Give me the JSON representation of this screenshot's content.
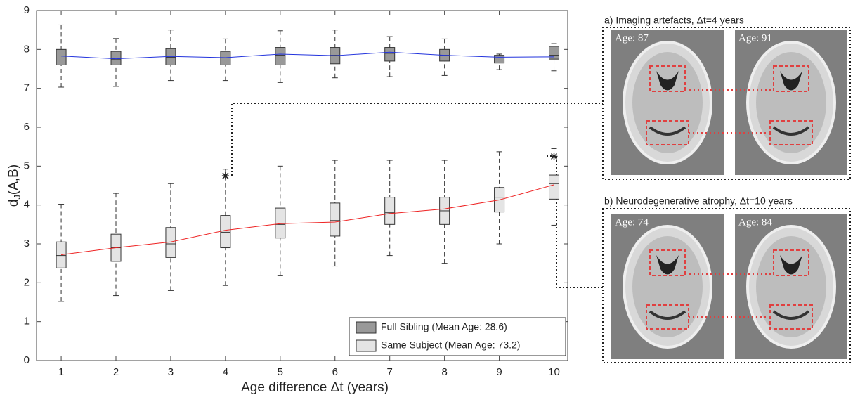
{
  "chart_data": {
    "type": "box",
    "xlabel": "Age difference Δt (years)",
    "ylabel": {
      "main": "d",
      "sub": "J",
      "rest": "(A,B)"
    },
    "x": [
      1,
      2,
      3,
      4,
      5,
      6,
      7,
      8,
      9,
      10
    ],
    "xlim": [
      0.55,
      10.25
    ],
    "xticks": [
      1,
      2,
      3,
      4,
      5,
      6,
      7,
      8,
      9,
      10
    ],
    "ylim": [
      0,
      9
    ],
    "yticks": [
      0,
      1,
      2,
      3,
      4,
      5,
      6,
      7,
      8,
      9
    ],
    "legend": "lower right",
    "series": [
      {
        "name": "Full Sibling (Mean Age: 28.6)",
        "color": "#999999",
        "line_color": "#2233dd",
        "low": [
          7.03,
          7.05,
          7.2,
          7.2,
          7.15,
          7.27,
          7.3,
          7.33,
          7.48,
          7.45
        ],
        "q1": [
          7.6,
          7.6,
          7.6,
          7.6,
          7.6,
          7.63,
          7.7,
          7.7,
          7.65,
          7.75
        ],
        "median": [
          7.78,
          7.75,
          7.8,
          7.78,
          7.85,
          7.85,
          7.9,
          7.85,
          7.78,
          7.85
        ],
        "q3": [
          8.0,
          7.95,
          8.02,
          7.95,
          8.05,
          8.05,
          8.05,
          8.0,
          7.85,
          8.08
        ],
        "high": [
          8.63,
          8.28,
          8.5,
          8.27,
          8.48,
          8.5,
          8.33,
          8.27,
          7.88,
          8.15
        ],
        "mean": [
          7.83,
          7.76,
          7.82,
          7.79,
          7.88,
          7.84,
          7.93,
          7.85,
          7.8,
          7.81
        ],
        "outlier_x": [],
        "outlier_values": []
      },
      {
        "name": "Same Subject (Mean Age: 73.2)",
        "color": "#e4e4e4",
        "line_color": "#ee2222",
        "low": [
          1.52,
          1.67,
          1.8,
          1.93,
          2.18,
          2.43,
          2.7,
          2.5,
          3.0,
          3.48
        ],
        "q1": [
          2.38,
          2.55,
          2.65,
          2.9,
          3.15,
          3.2,
          3.5,
          3.5,
          3.82,
          4.15
        ],
        "median": [
          2.7,
          2.9,
          3.0,
          3.3,
          3.5,
          3.6,
          3.8,
          3.85,
          4.2,
          4.55
        ],
        "q3": [
          3.05,
          3.25,
          3.42,
          3.73,
          3.92,
          4.05,
          4.2,
          4.2,
          4.45,
          4.77
        ],
        "high": [
          4.02,
          4.3,
          4.55,
          4.92,
          5.0,
          5.15,
          5.15,
          5.15,
          5.37,
          5.45
        ],
        "mean": [
          2.72,
          2.9,
          3.05,
          3.35,
          3.52,
          3.56,
          3.78,
          3.9,
          4.13,
          4.52
        ],
        "outlier_x": [
          4,
          10
        ],
        "outlier_values": [
          4.75,
          5.25
        ]
      }
    ],
    "panels": [
      {
        "title": "a) Imaging artefacts, Δt=4 years",
        "ages": [
          "Age: 87",
          "Age: 91"
        ]
      },
      {
        "title": "b) Neurodegenerative atrophy, Δt=10 years",
        "ages": [
          "Age: 74",
          "Age: 84"
        ]
      }
    ]
  }
}
